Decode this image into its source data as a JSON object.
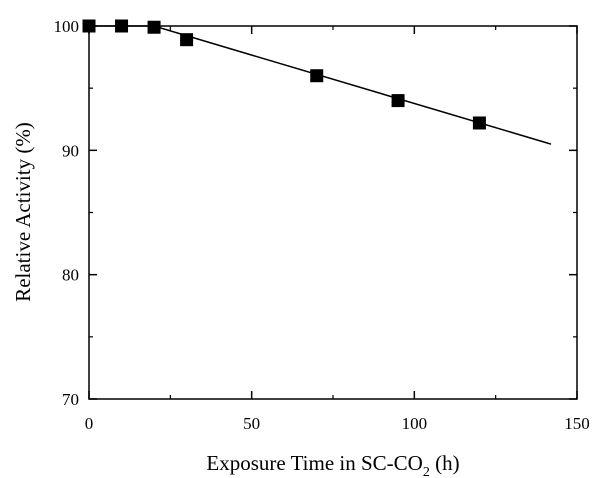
{
  "chart_data": {
    "type": "scatter",
    "title": "",
    "xlabel_main": "Exposure Time in SC-CO",
    "xlabel_sub": "2",
    "xlabel_tail": " (h)",
    "ylabel": "Relative Activity (%)",
    "xlim": [
      0,
      150
    ],
    "ylim": [
      70,
      100
    ],
    "x_ticks": [
      0,
      50,
      100,
      150
    ],
    "y_ticks": [
      70,
      80,
      90,
      100
    ],
    "grid": false,
    "series": [
      {
        "x": [
          0,
          10,
          20,
          30,
          70,
          95,
          120
        ],
        "y": [
          100,
          100,
          99.9,
          98.9,
          96,
          94,
          92.2
        ],
        "marker": "square",
        "color": "#000000"
      }
    ],
    "fit_line": {
      "x": [
        0,
        20,
        142
      ],
      "y": [
        100,
        100,
        90.5
      ]
    }
  }
}
